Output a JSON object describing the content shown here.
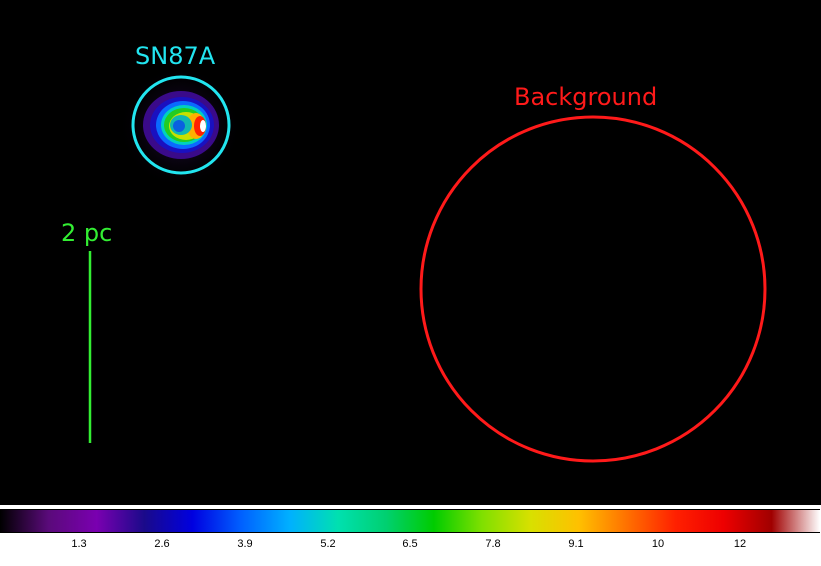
{
  "image": {
    "background_color": "#000000",
    "source_label": "SN87A",
    "source_color": "#22e5f0",
    "background_label": "Background",
    "background_region_color": "#ff1a1a",
    "scale_bar_label": "2 pc",
    "scale_bar_color": "#33ee33"
  },
  "colorbar": {
    "gradient_colors": [
      "#000000",
      "#5a0a7a",
      "#7a00b0",
      "#1a0a8a",
      "#0000e0",
      "#0060ff",
      "#00b0ff",
      "#00e0b0",
      "#00d070",
      "#00cc00",
      "#80e000",
      "#d8e000",
      "#ffc000",
      "#ff7000",
      "#ff2000",
      "#ee0000",
      "#a00000",
      "#ffffff"
    ],
    "ticks": [
      "1.3",
      "2.6",
      "3.9",
      "5.2",
      "6.5",
      "7.8",
      "9.1",
      "10",
      "12"
    ]
  }
}
